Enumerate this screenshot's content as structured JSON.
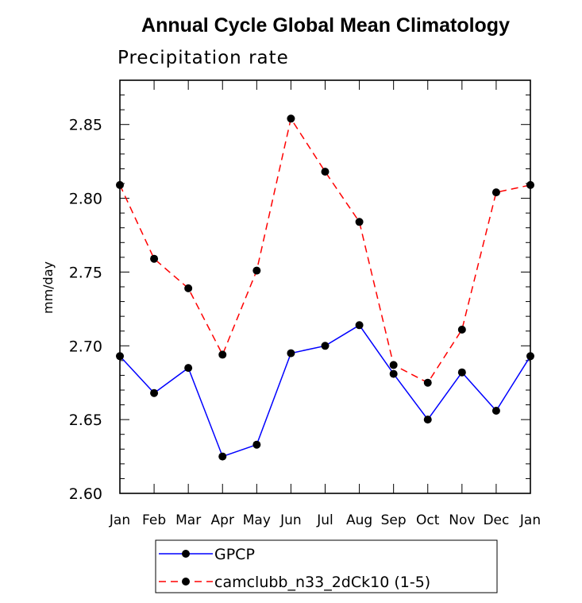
{
  "chart_data": {
    "type": "line",
    "title": "Annual Cycle Global Mean Climatology",
    "subtitle": "Precipitation rate",
    "xlabel": "",
    "ylabel": "mm/day",
    "ylim": [
      2.6,
      2.88
    ],
    "yticks": [
      "2.60",
      "2.65",
      "2.70",
      "2.75",
      "2.80",
      "2.85"
    ],
    "categories": [
      "Jan",
      "Feb",
      "Mar",
      "Apr",
      "May",
      "Jun",
      "Jul",
      "Aug",
      "Sep",
      "Oct",
      "Nov",
      "Dec",
      "Jan"
    ],
    "series": [
      {
        "name": "GPCP",
        "color": "#0000ff",
        "dash": "solid",
        "values": [
          2.693,
          2.668,
          2.685,
          2.625,
          2.633,
          2.695,
          2.7,
          2.714,
          2.681,
          2.65,
          2.682,
          2.656,
          2.693
        ]
      },
      {
        "name": "camclubb_n33_2dCk10 (1-5)",
        "color": "#ff0000",
        "dash": "dashed",
        "values": [
          2.809,
          2.759,
          2.739,
          2.694,
          2.751,
          2.854,
          2.818,
          2.784,
          2.687,
          2.675,
          2.711,
          2.804,
          2.809
        ]
      }
    ],
    "legend_position": "bottom"
  }
}
